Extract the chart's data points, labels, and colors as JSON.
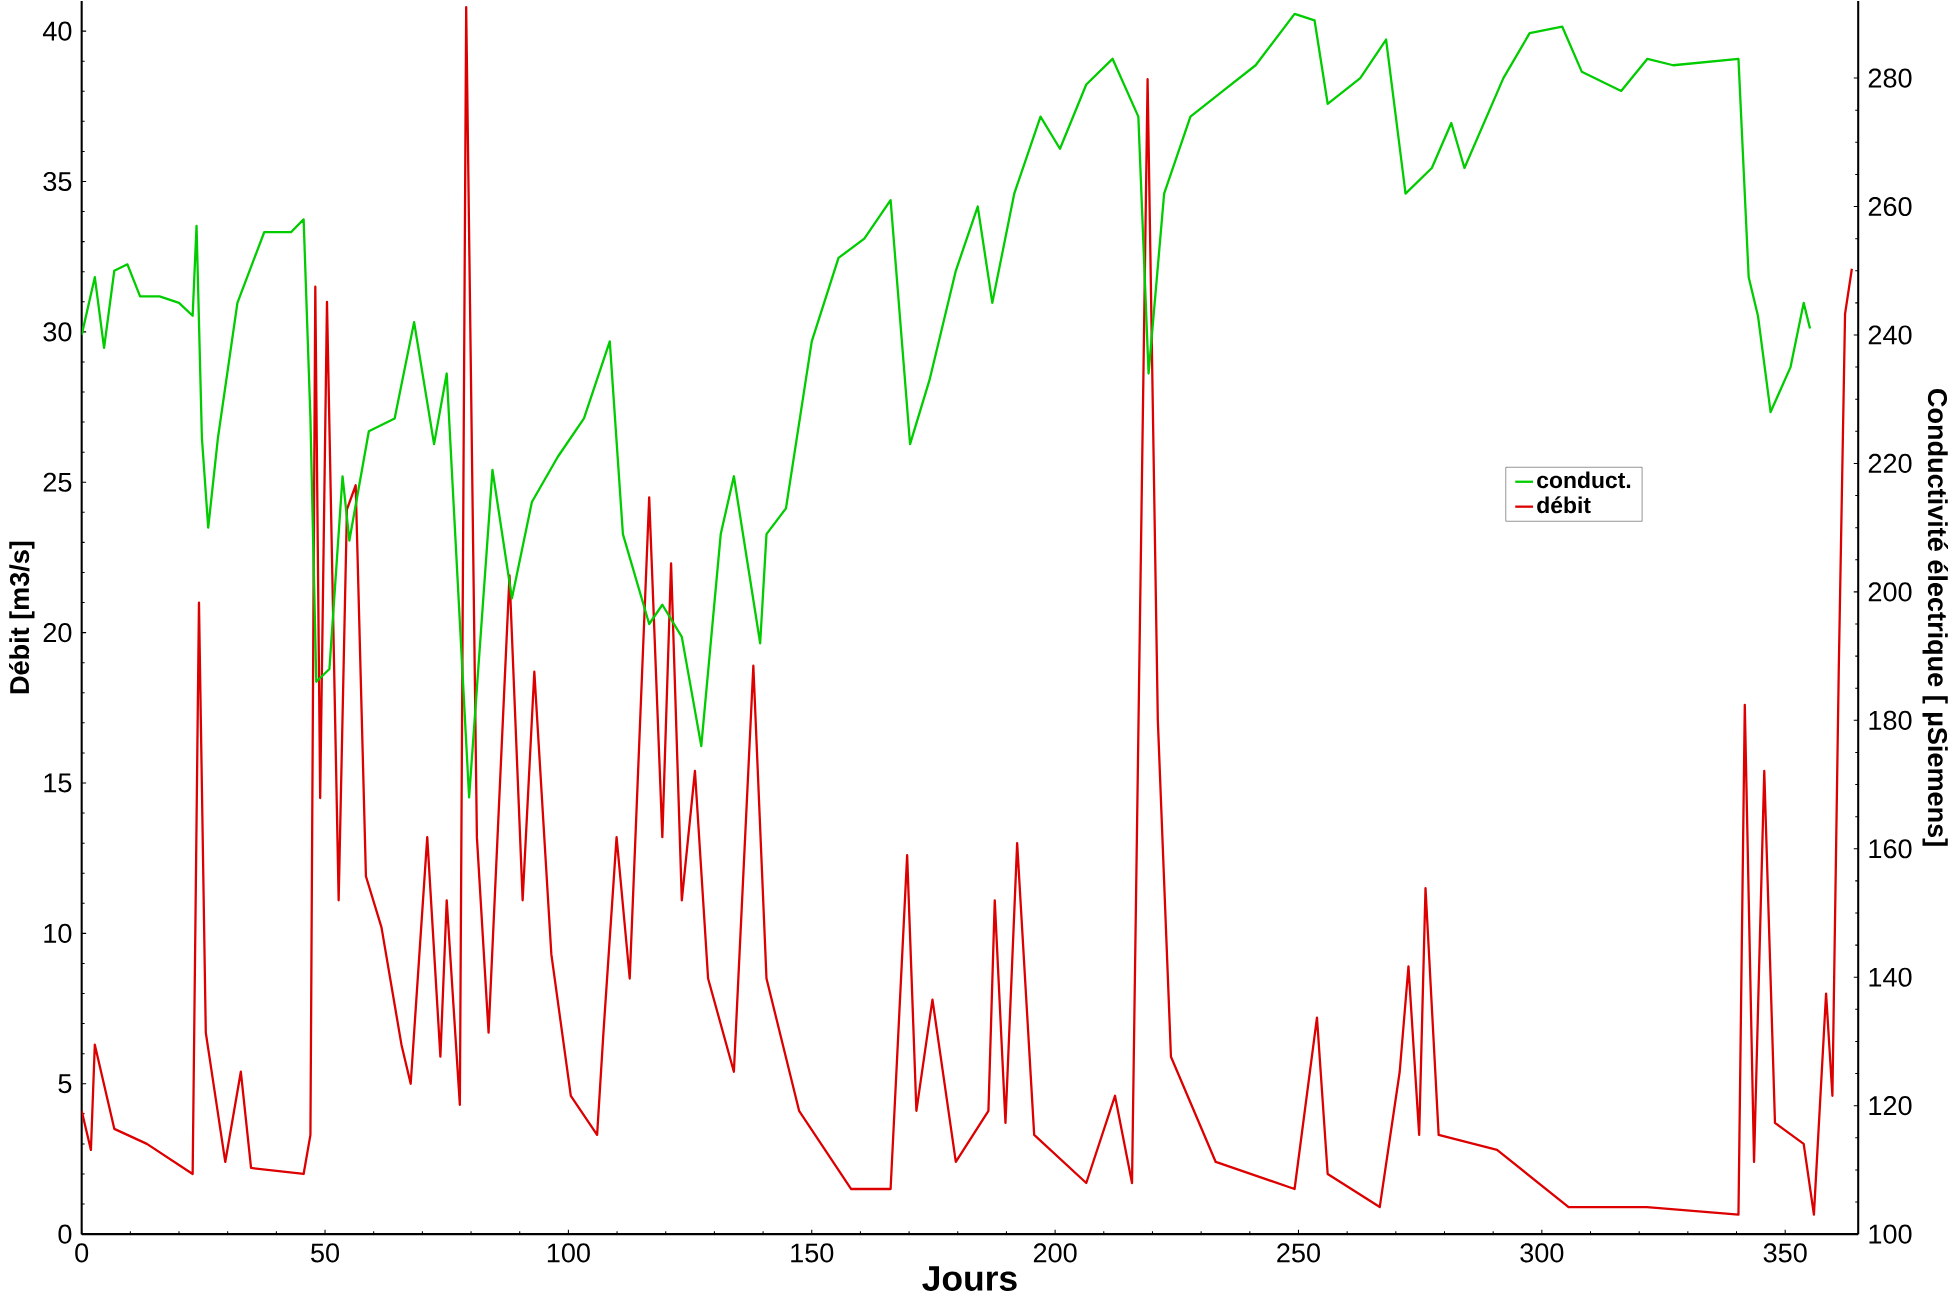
{
  "chart_data": {
    "type": "line",
    "xlabel": "Jours",
    "ylabel": "Débit [m3/s]",
    "y2label": "Conductivité électrique [ µSiemens]",
    "xlim": [
      0,
      365
    ],
    "xticks": [
      0,
      50,
      100,
      150,
      200,
      250,
      300,
      350
    ],
    "ylim": [
      0,
      41
    ],
    "yticks": [
      0,
      5,
      10,
      15,
      20,
      25,
      30,
      35,
      40
    ],
    "y2lim": [
      100,
      292
    ],
    "y2ticks": [
      100,
      120,
      140,
      160,
      180,
      200,
      220,
      240,
      260,
      280
    ],
    "legend": "right",
    "series": [
      {
        "name": "conduct.",
        "color": "#00cc00",
        "axis": "y2",
        "x": [
          0,
          2.7,
          4.6,
          6.7,
          9.4,
          12,
          16,
          20,
          22.8,
          23.6,
          24.7,
          26,
          28,
          32,
          37.5,
          43,
          45.6,
          47,
          48.2,
          50.9,
          53.6,
          55,
          59,
          64.3,
          68.3,
          72.4,
          75,
          79.6,
          84.4,
          88.4,
          92.5,
          97.8,
          103.2,
          108.5,
          111.2,
          116.6,
          119.3,
          123.3,
          127.3,
          131.3,
          134,
          136.7,
          139.4,
          140.7,
          144.7,
          150,
          155.5,
          160.8,
          166.2,
          170.2,
          174.2,
          179.6,
          184.1,
          187.1,
          191.6,
          197,
          201,
          206.4,
          211.8,
          217.1,
          219.2,
          222.4,
          227.8,
          234.5,
          241.2,
          249.2,
          253.3,
          256,
          262.7,
          268,
          272,
          277.4,
          281.4,
          284.1,
          292.1,
          297.5,
          304.2,
          308.2,
          316.3,
          321.7,
          327,
          340.4,
          342.5,
          344.4,
          347,
          351.1,
          353.8,
          355.1
        ],
        "values": [
          240,
          249,
          238,
          250,
          251,
          246,
          246,
          245,
          243,
          257,
          224,
          210,
          224,
          245,
          256,
          256,
          258,
          227,
          186,
          188,
          218,
          208,
          225,
          227,
          242,
          223,
          234,
          168,
          219,
          199,
          214,
          221,
          227,
          239,
          209,
          195,
          198,
          193,
          176,
          209,
          218,
          205,
          192,
          209,
          213,
          239,
          252,
          255,
          261,
          223,
          233,
          250,
          260,
          245,
          262,
          274,
          269,
          279,
          283,
          274,
          234,
          262,
          274,
          278,
          282,
          290,
          289,
          276,
          280,
          286,
          262,
          266,
          273,
          266,
          280,
          287,
          288,
          281,
          278,
          283,
          282,
          283,
          249,
          243,
          228,
          235,
          245,
          241
        ]
      },
      {
        "name": "débit",
        "color": "#dd0000",
        "axis": "y",
        "x": [
          0,
          1.9,
          2.7,
          6.7,
          13.4,
          22.8,
          24.1,
          25.5,
          29.5,
          32.7,
          34.8,
          45.6,
          47,
          48,
          49,
          50.4,
          52.8,
          54.5,
          56.3,
          58.4,
          61.6,
          65.7,
          67.6,
          71,
          73.7,
          75,
          77.7,
          79,
          81.2,
          83.6,
          87.9,
          90.6,
          93,
          96.5,
          100.5,
          105.9,
          107.2,
          109.9,
          112.6,
          116.6,
          119.3,
          121.1,
          123.3,
          126,
          128.7,
          134,
          138,
          140.7,
          147.4,
          158.1,
          166.2,
          169.6,
          171.5,
          174.8,
          179.6,
          186.3,
          187.6,
          189.8,
          192.2,
          195.7,
          206.4,
          212.3,
          215.8,
          219,
          221.1,
          223.8,
          233,
          249.2,
          253.8,
          256,
          266.7,
          270.8,
          272.6,
          274.8,
          276.1,
          278.8,
          290.8,
          305.5,
          321.6,
          340.4,
          341.7,
          343.6,
          345.7,
          347.9,
          353.8,
          355.9,
          358.4,
          359.7,
          361,
          362.3,
          363.7
        ],
        "values": [
          4.1,
          2.8,
          6.3,
          3.5,
          3.0,
          2.0,
          21.0,
          6.7,
          2.4,
          5.4,
          2.2,
          2.0,
          3.3,
          31.5,
          14.5,
          31.0,
          11.1,
          24.1,
          24.9,
          11.9,
          10.2,
          6.3,
          5.0,
          13.2,
          5.9,
          11.1,
          4.3,
          40.8,
          13.2,
          6.7,
          21.9,
          11.1,
          18.7,
          9.3,
          4.6,
          3.3,
          6.7,
          13.2,
          8.5,
          24.5,
          13.2,
          22.3,
          11.1,
          15.4,
          8.5,
          5.4,
          18.9,
          8.5,
          4.1,
          1.5,
          1.5,
          12.6,
          4.1,
          7.8,
          2.4,
          4.1,
          11.1,
          3.7,
          13.0,
          3.3,
          1.7,
          4.6,
          1.7,
          38.4,
          17.1,
          5.9,
          2.4,
          1.5,
          7.2,
          2.0,
          0.9,
          5.4,
          8.9,
          3.3,
          11.5,
          3.3,
          2.8,
          0.9,
          0.9,
          0.65,
          17.6,
          2.4,
          15.4,
          3.7,
          3.0,
          0.65,
          8.0,
          4.6,
          18.7,
          30.6,
          32.1
        ]
      }
    ]
  }
}
